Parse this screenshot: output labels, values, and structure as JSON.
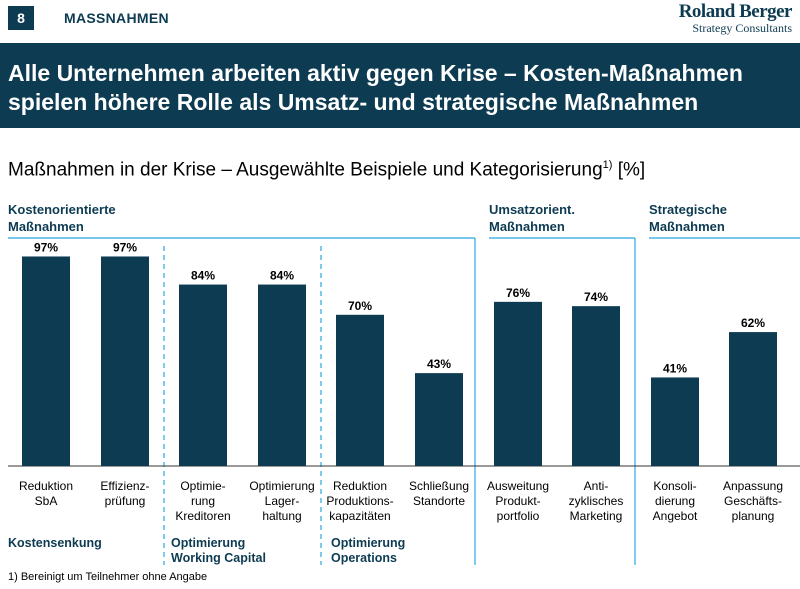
{
  "header": {
    "page_number": "8",
    "section": "MASSNAHMEN",
    "logo_line1": "Roland Berger",
    "logo_line2": "Strategy Consultants"
  },
  "title": "Alle Unternehmen arbeiten aktiv gegen Krise – Kosten-Maßnahmen spielen höhere Rolle als Umsatz- und strategische Maßnahmen",
  "subtitle": {
    "text": "Maßnahmen in der Krise – Ausgewählte Beispiele und Kategorisierung",
    "footnote_marker": "1)",
    "unit": " [%]"
  },
  "footnote": "1) Bereinigt um Teilnehmer ohne Angabe",
  "colors": {
    "bar": "#0d3b52",
    "accent_line": "#29a8e0",
    "title_bg": "#0d3b52"
  },
  "chart_data": {
    "type": "bar",
    "title": "Maßnahmen in der Krise – Ausgewählte Beispiele und Kategorisierung",
    "ylabel": "%",
    "ylim": [
      0,
      100
    ],
    "grid": false,
    "categories": [
      [
        "Reduktion",
        "SbA"
      ],
      [
        "Effizienz-",
        "prüfung"
      ],
      [
        "Optimie-",
        "rung",
        "Kreditoren"
      ],
      [
        "Optimierung",
        "Lager-",
        "haltung"
      ],
      [
        "Reduktion",
        "Produktions-",
        "kapazitäten"
      ],
      [
        "Schließung",
        "Standorte"
      ],
      [
        "Ausweitung",
        "Produkt-",
        "portfolio"
      ],
      [
        "Anti-",
        "zyklisches",
        "Marketing"
      ],
      [
        "Konsoli-",
        "dierung",
        "Angebot"
      ],
      [
        "Anpassung",
        "Geschäfts-",
        "planung"
      ]
    ],
    "values": [
      97,
      97,
      84,
      84,
      70,
      43,
      76,
      74,
      41,
      62
    ],
    "value_labels": [
      "97%",
      "97%",
      "84%",
      "84%",
      "70%",
      "43%",
      "76%",
      "74%",
      "41%",
      "62%"
    ],
    "groups": [
      {
        "label": [
          "Kostenorientierte",
          "Maßnahmen"
        ],
        "bars": [
          0,
          1,
          2,
          3,
          4,
          5
        ]
      },
      {
        "label": [
          "Umsatzorient.",
          "Maßnahmen"
        ],
        "bars": [
          6,
          7
        ]
      },
      {
        "label": [
          "Strategische",
          "Maßnahmen"
        ],
        "bars": [
          8,
          9
        ]
      }
    ],
    "subgroups": [
      {
        "label": [
          "Kostensenkung"
        ],
        "bars": [
          0,
          1
        ]
      },
      {
        "label": [
          "Optimierung",
          "Working Capital"
        ],
        "bars": [
          2,
          3
        ]
      },
      {
        "label": [
          "Optimierung",
          "Operations"
        ],
        "bars": [
          4,
          5
        ]
      }
    ]
  }
}
